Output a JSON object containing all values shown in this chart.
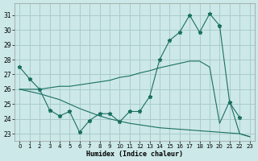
{
  "background_color": "#cce8e8",
  "grid_color": "#aacccc",
  "line_color": "#1a7060",
  "xlabel": "Humidex (Indice chaleur)",
  "yticks": [
    23,
    24,
    25,
    26,
    27,
    28,
    29,
    30,
    31
  ],
  "xlim": [
    -0.5,
    23.5
  ],
  "ylim": [
    22.5,
    31.8
  ],
  "line1_x": [
    0,
    1,
    2,
    3,
    4,
    5,
    6,
    7,
    8,
    9,
    10,
    11,
    12,
    13,
    14,
    15,
    16,
    17,
    18,
    19,
    20,
    21,
    22
  ],
  "line1_y": [
    27.5,
    26.7,
    26.0,
    24.6,
    24.2,
    24.5,
    23.1,
    23.9,
    24.35,
    24.35,
    23.8,
    24.5,
    24.5,
    25.5,
    28.0,
    29.3,
    29.85,
    31.0,
    29.85,
    31.1,
    30.3,
    25.1,
    24.1
  ],
  "line2_x": [
    0,
    2,
    3,
    4,
    5,
    6,
    7,
    8,
    9,
    10,
    11,
    12,
    13,
    14,
    15,
    16,
    17,
    18,
    19,
    20,
    21,
    22,
    23
  ],
  "line2_y": [
    26.0,
    26.0,
    26.1,
    26.2,
    26.2,
    26.3,
    26.4,
    26.5,
    26.6,
    26.8,
    26.9,
    27.1,
    27.25,
    27.45,
    27.6,
    27.75,
    27.9,
    27.9,
    27.5,
    23.7,
    25.2,
    23.0,
    22.8
  ],
  "line3_x": [
    0,
    1,
    2,
    3,
    4,
    5,
    6,
    7,
    8,
    9,
    10,
    11,
    12,
    13,
    14,
    15,
    16,
    17,
    18,
    19,
    20,
    21,
    22,
    23
  ],
  "line3_y": [
    26.0,
    25.85,
    25.7,
    25.5,
    25.3,
    25.0,
    24.7,
    24.45,
    24.2,
    24.0,
    23.85,
    23.7,
    23.6,
    23.5,
    23.4,
    23.35,
    23.3,
    23.25,
    23.2,
    23.15,
    23.1,
    23.05,
    23.0,
    22.8
  ]
}
